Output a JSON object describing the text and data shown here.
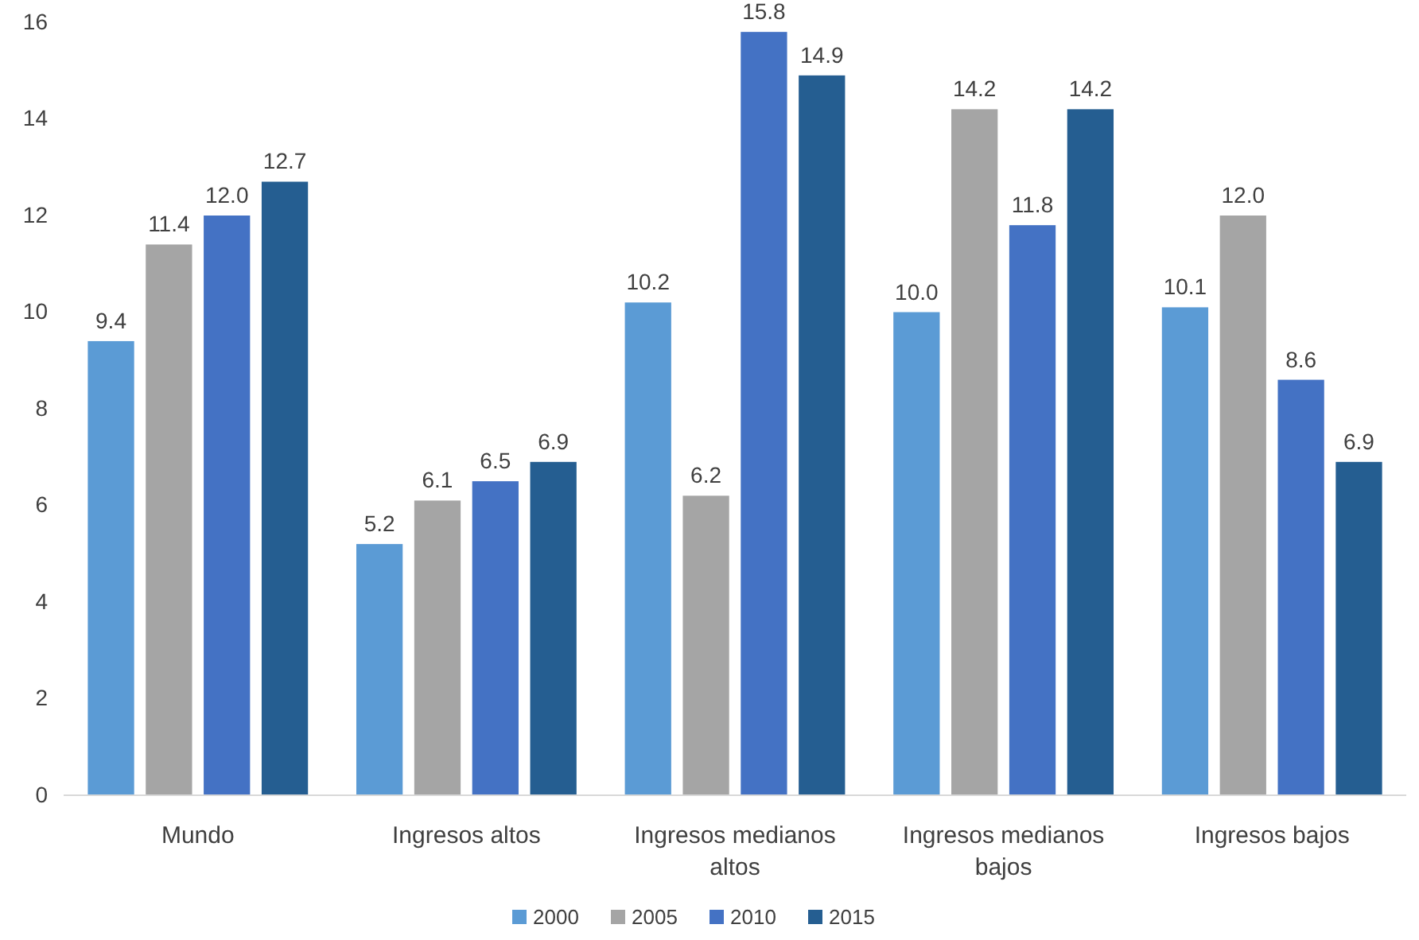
{
  "chart_data": {
    "type": "bar",
    "categories": [
      "Mundo",
      "Ingresos altos",
      "Ingresos medianos altos",
      "Ingresos medianos bajos",
      "Ingresos bajos"
    ],
    "series": [
      {
        "name": "2000",
        "color": "#5b9bd5",
        "values": [
          9.4,
          5.2,
          10.2,
          10.0,
          10.1
        ],
        "value_labels": [
          "9.4",
          "5.2",
          "10.2",
          "10.0",
          "10.1"
        ]
      },
      {
        "name": "2005",
        "color": "#a5a5a5",
        "values": [
          11.4,
          6.1,
          6.2,
          14.2,
          12.0
        ],
        "value_labels": [
          "11.4",
          "6.1",
          "6.2",
          "14.2",
          "12.0"
        ]
      },
      {
        "name": "2010",
        "color": "#4472c4",
        "values": [
          12.0,
          6.5,
          15.8,
          11.8,
          8.6
        ],
        "value_labels": [
          "12.0",
          "6.5",
          "15.8",
          "11.8",
          "8.6"
        ]
      },
      {
        "name": "2015",
        "color": "#255e91",
        "values": [
          12.7,
          6.9,
          14.9,
          14.2,
          6.9
        ],
        "value_labels": [
          "12.7",
          "6.9",
          "14.9",
          "14.2",
          "6.9"
        ]
      }
    ],
    "ylim": [
      0,
      16
    ],
    "yticks": [
      0,
      2,
      4,
      6,
      8,
      10,
      12,
      14,
      16
    ],
    "grid": false,
    "legend": "bottom"
  }
}
